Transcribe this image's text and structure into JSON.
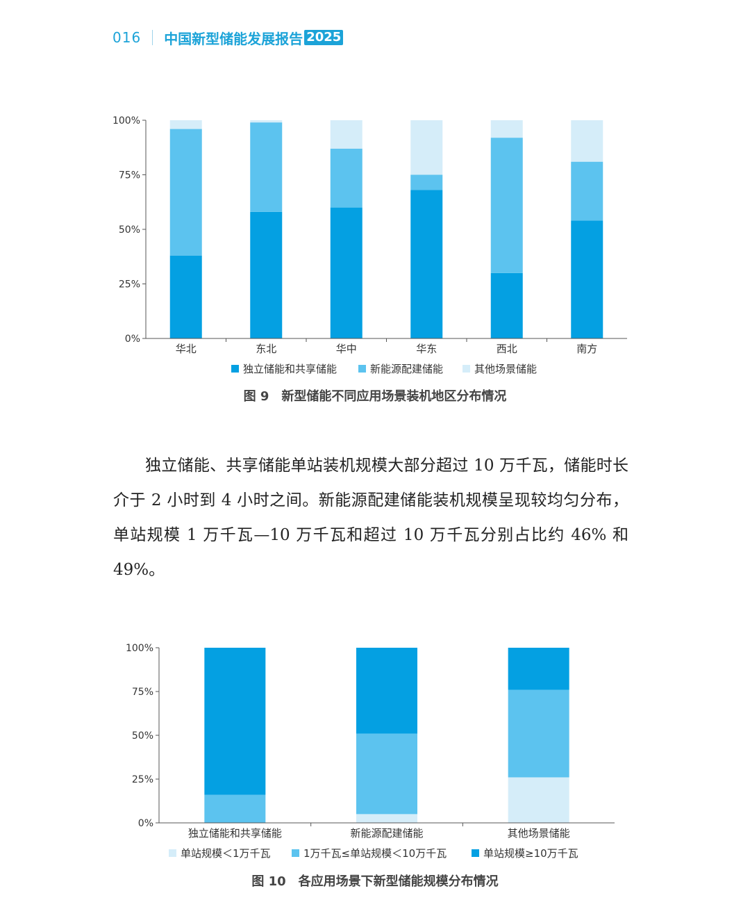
{
  "header": {
    "page_number": "016",
    "title": "中国新型储能发展报告",
    "year": "2025"
  },
  "colors": {
    "dark": "#04a0e2",
    "medium": "#5cc3ef",
    "light": "#d5edf9",
    "accent": "#1ca3d8"
  },
  "figure9": {
    "caption_no": "图 9",
    "caption_text": "新型储能不同应用场景装机地区分布情况",
    "chart_data": {
      "type": "bar",
      "stacked": true,
      "categories": [
        "华北",
        "东北",
        "华中",
        "华东",
        "西北",
        "南方"
      ],
      "series": [
        {
          "name": "独立储能和共享储能",
          "values": [
            38,
            58,
            60,
            68,
            30,
            54
          ]
        },
        {
          "name": "新能源配建储能",
          "values": [
            58,
            41,
            27,
            7,
            62,
            27
          ]
        },
        {
          "name": "其他场景储能",
          "values": [
            4,
            1,
            13,
            25,
            8,
            19
          ]
        }
      ],
      "yticks": [
        "0%",
        "25%",
        "50%",
        "75%",
        "100%"
      ],
      "ylim": [
        0,
        100
      ],
      "legend_position": "bottom"
    }
  },
  "paragraph": "独立储能、共享储能单站装机规模大部分超过 10 万千瓦，储能时长介于 2 小时到 4 小时之间。新能源配建储能装机规模呈现较均匀分布，单站规模 1 万千瓦—10 万千瓦和超过 10 万千瓦分别占比约 46% 和 49%。",
  "figure10": {
    "caption_no": "图 10",
    "caption_text": "各应用场景下新型储能规模分布情况",
    "chart_data": {
      "type": "bar",
      "stacked": true,
      "categories": [
        "独立储能和共享储能",
        "新能源配建储能",
        "其他场景储能"
      ],
      "series": [
        {
          "name": "单站规模＜1万千瓦",
          "values": [
            0,
            5,
            26
          ]
        },
        {
          "name": "1万千瓦≤单站规模＜10万千瓦",
          "values": [
            16,
            46,
            50
          ]
        },
        {
          "name": "单站规模≥10万千瓦",
          "values": [
            84,
            49,
            24
          ]
        }
      ],
      "yticks": [
        "0%",
        "25%",
        "50%",
        "75%",
        "100%"
      ],
      "ylim": [
        0,
        100
      ],
      "legend_position": "bottom"
    }
  }
}
